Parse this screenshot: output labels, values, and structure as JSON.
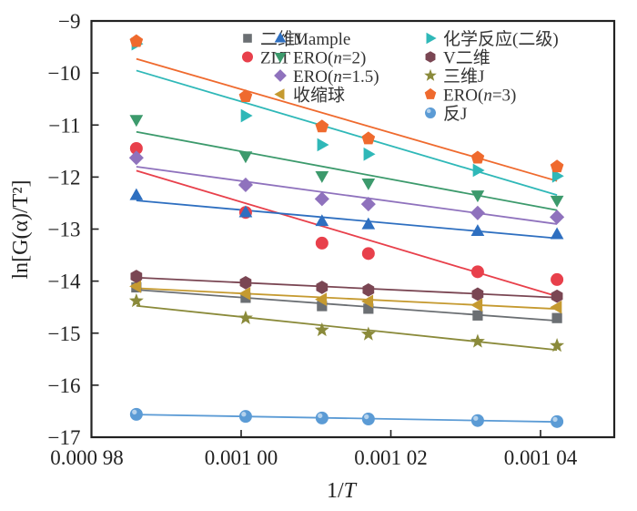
{
  "chart_data": {
    "type": "scatter",
    "title": "",
    "xlabel": "1/T",
    "ylabel": "ln[G(α)/T²]",
    "xlim": [
      0.00098,
      0.00105
    ],
    "ylim": [
      -17,
      -9
    ],
    "x_ticks": [
      0.00098,
      0.001,
      0.00102,
      0.00104
    ],
    "x_tick_labels": [
      "0.000 98",
      "0.001 00",
      "0.001 02",
      "0.001 04"
    ],
    "y_ticks": [
      -9,
      -10,
      -11,
      -12,
      -13,
      -14,
      -15,
      -16,
      -17
    ],
    "y_tick_labels": [
      "−9",
      "−10",
      "−11",
      "−12",
      "−13",
      "−14",
      "−15",
      "−16",
      "−17"
    ],
    "grid": false,
    "legend_position": "top-right",
    "fit_lines": true,
    "x": [
      0.000986,
      0.0010006,
      0.0010108,
      0.001017,
      0.0010316,
      0.0010422
    ],
    "series": [
      {
        "name": "二维J",
        "marker": "square",
        "color": "#6b6f73",
        "values": [
          -14.12,
          -14.32,
          -14.48,
          -14.53,
          -14.66,
          -14.71
        ]
      },
      {
        "name": "ZLT",
        "marker": "circle",
        "color": "#e8404b",
        "values": [
          -11.45,
          -12.68,
          -13.27,
          -13.47,
          -13.82,
          -13.97
        ]
      },
      {
        "name": "Mample",
        "marker": "triangle-up",
        "color": "#2e6fc0",
        "values": [
          -12.35,
          -12.68,
          -12.85,
          -12.91,
          -13.04,
          -13.1
        ]
      },
      {
        "name": "ERO(n=2)",
        "marker": "triangle-down",
        "color": "#3c9a6c",
        "values": [
          -10.9,
          -11.6,
          -11.98,
          -12.12,
          -12.35,
          -12.45
        ]
      },
      {
        "name": "ERO(n=1.5)",
        "marker": "diamond",
        "color": "#8f72bd",
        "values": [
          -11.63,
          -12.15,
          -12.42,
          -12.52,
          -12.69,
          -12.77
        ]
      },
      {
        "name": "收缩球",
        "marker": "triangle-left",
        "color": "#c59a30",
        "values": [
          -14.1,
          -14.24,
          -14.35,
          -14.39,
          -14.46,
          -14.5
        ]
      },
      {
        "name": "化学反应(二级)",
        "marker": "triangle-right",
        "color": "#2fb8b8",
        "values": [
          -9.44,
          -10.82,
          -11.38,
          -11.56,
          -11.87,
          -11.98
        ]
      },
      {
        "name": "V二维",
        "marker": "hexagon",
        "color": "#7a4653",
        "values": [
          -13.91,
          -14.03,
          -14.12,
          -14.17,
          -14.25,
          -14.29
        ]
      },
      {
        "name": "三维J",
        "marker": "star",
        "color": "#8a8a3a",
        "values": [
          -14.38,
          -14.71,
          -14.94,
          -15.02,
          -15.16,
          -15.24
        ]
      },
      {
        "name": "ERO(n=3)",
        "marker": "pentagon",
        "color": "#ef6a2e",
        "values": [
          -9.39,
          -10.45,
          -11.03,
          -11.26,
          -11.63,
          -11.8
        ]
      },
      {
        "name": "反J",
        "marker": "sphere",
        "color": "#5b9bd5",
        "values": [
          -16.56,
          -16.6,
          -16.63,
          -16.65,
          -16.68,
          -16.7
        ]
      }
    ],
    "legend_columns": [
      [
        "二维J",
        "ZLT"
      ],
      [
        "Mample",
        "ERO(n=2)",
        "ERO(n=1.5)",
        "收缩球"
      ],
      [
        "化学反应(二级)",
        "V二维",
        "三维J",
        "ERO(n=3)",
        "反J"
      ]
    ]
  }
}
